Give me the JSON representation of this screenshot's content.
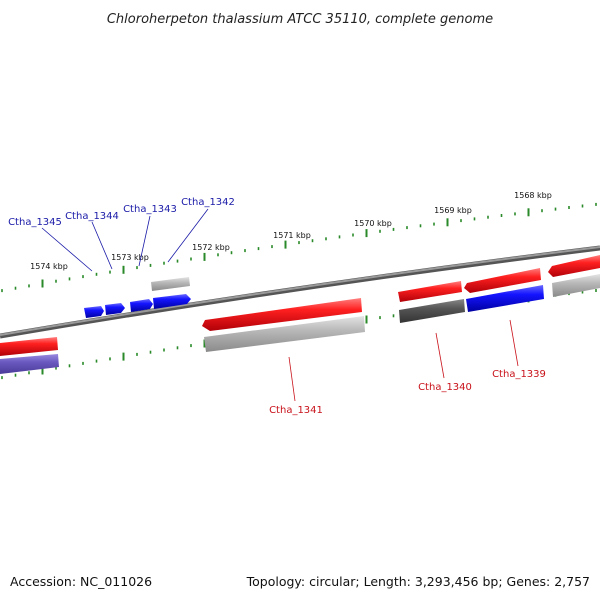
{
  "title": "Chloroherpeton thalassium ATCC 35110, complete genome",
  "footer": {
    "accession": "Accession: NC_011026",
    "summary": "Topology: circular; Length: 3,293,456 bp; Genes: 2,757"
  },
  "ruler_labels": [
    "1574 kbp",
    "1573 kbp",
    "1572 kbp",
    "1571 kbp",
    "1570 kbp",
    "1569 kbp",
    "1568 kbp"
  ],
  "genes": {
    "blue": [
      "Ctha_1345",
      "Ctha_1344",
      "Ctha_1343",
      "Ctha_1342"
    ],
    "red": [
      "Ctha_1341",
      "Ctha_1340",
      "Ctha_1339"
    ]
  },
  "colors": {
    "backbone": "#777777",
    "ticks": "#2a8a2a",
    "forward_cds": "#e8141a",
    "reverse_cds": "#1010e0",
    "other_cds": "#aaaaaa",
    "dark_cds": "#555555",
    "purple_cds": "#6a5ac0"
  }
}
